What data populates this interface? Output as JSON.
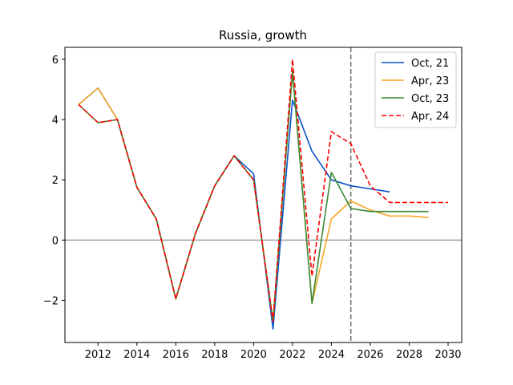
{
  "chart_data": {
    "type": "line",
    "title": "Russia, growth",
    "xlabel": "",
    "ylabel": "",
    "xlim": [
      2010.3,
      2030.7
    ],
    "ylim": [
      -3.4,
      6.4
    ],
    "xticks": [
      2012,
      2014,
      2016,
      2018,
      2020,
      2022,
      2024,
      2026,
      2028,
      2030
    ],
    "yticks": [
      -2,
      0,
      2,
      4,
      6
    ],
    "ytick_labels": [
      "−2",
      "0",
      "2",
      "4",
      "6"
    ],
    "zero_line": 0,
    "vertical_line": 2025,
    "legend_position": "top-right",
    "series": [
      {
        "name": "Oct, 21",
        "color": "#0a52c8",
        "style": "solid",
        "x": [
          2011,
          2012,
          2013,
          2014,
          2015,
          2016,
          2017,
          2018,
          2019,
          2020,
          2021,
          2022,
          2023,
          2024,
          2025,
          2026,
          2027
        ],
        "values": [
          4.5,
          5.05,
          4.0,
          1.75,
          0.7,
          -1.95,
          0.2,
          1.8,
          2.8,
          2.2,
          -2.95,
          4.65,
          2.95,
          2.0,
          1.8,
          1.7,
          1.6
        ]
      },
      {
        "name": "Apr, 23",
        "color": "#f5a623",
        "style": "solid",
        "x": [
          2011,
          2012,
          2013,
          2014,
          2015,
          2016,
          2017,
          2018,
          2019,
          2020,
          2021,
          2022,
          2023,
          2024,
          2025,
          2026,
          2027,
          2028,
          2029
        ],
        "values": [
          4.5,
          5.05,
          4.0,
          1.75,
          0.7,
          -1.95,
          0.2,
          1.8,
          2.8,
          2.0,
          -2.7,
          5.6,
          -2.1,
          0.7,
          1.3,
          1.0,
          0.8,
          0.8,
          0.75
        ]
      },
      {
        "name": "Oct, 23",
        "color": "#3a8a36",
        "style": "solid",
        "x": [
          2011,
          2012,
          2013,
          2014,
          2015,
          2016,
          2017,
          2018,
          2019,
          2020,
          2021,
          2022,
          2023,
          2024,
          2025,
          2026,
          2027,
          2028,
          2029
        ],
        "values": [
          4.5,
          3.9,
          4.0,
          1.75,
          0.7,
          -1.95,
          0.2,
          1.8,
          2.8,
          2.0,
          -2.7,
          5.6,
          -2.1,
          2.25,
          1.05,
          0.95,
          0.95,
          0.95,
          0.95
        ]
      },
      {
        "name": "Apr, 24",
        "color": "#ff0000",
        "style": "dashed",
        "x": [
          2011,
          2012,
          2013,
          2014,
          2015,
          2016,
          2017,
          2018,
          2019,
          2020,
          2021,
          2022,
          2023,
          2024,
          2025,
          2026,
          2027,
          2028,
          2029,
          2030
        ],
        "values": [
          4.5,
          3.9,
          4.0,
          1.75,
          0.7,
          -1.95,
          0.2,
          1.8,
          2.8,
          2.0,
          -2.7,
          6.0,
          -1.2,
          3.6,
          3.2,
          1.8,
          1.25,
          1.25,
          1.25,
          1.25
        ]
      }
    ]
  }
}
